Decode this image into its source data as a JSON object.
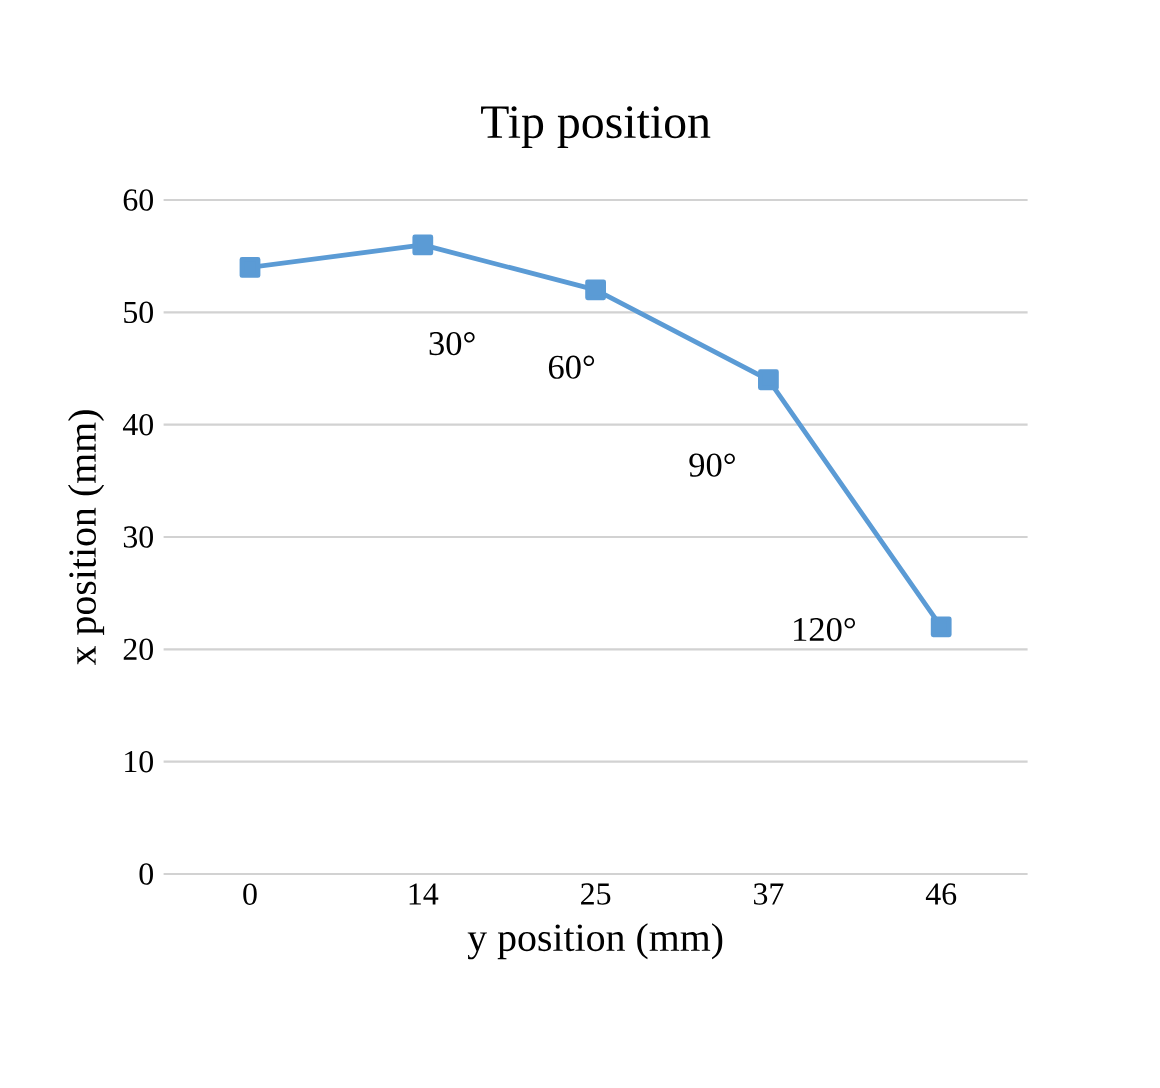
{
  "chart_data": {
    "type": "line",
    "title": "Tip position",
    "xlabel": "y position (mm)",
    "ylabel": "x position (mm)",
    "categories": [
      "0",
      "14",
      "25",
      "37",
      "46"
    ],
    "series": [
      {
        "color": "#5b9bd5",
        "values": [
          54,
          56,
          52,
          44,
          22
        ]
      }
    ],
    "ylim": [
      0,
      60
    ],
    "yticks": [
      0,
      10,
      20,
      30,
      40,
      50,
      60
    ],
    "grid": "y",
    "marker": "square",
    "line_style": "solid",
    "annotations": [
      {
        "text": "30°",
        "x": "14",
        "y": 56
      },
      {
        "text": "60°",
        "x": "25",
        "y": 52
      },
      {
        "text": "90°",
        "x": "37",
        "y": 44
      },
      {
        "text": "120°",
        "x": "46",
        "y": 22
      }
    ]
  }
}
